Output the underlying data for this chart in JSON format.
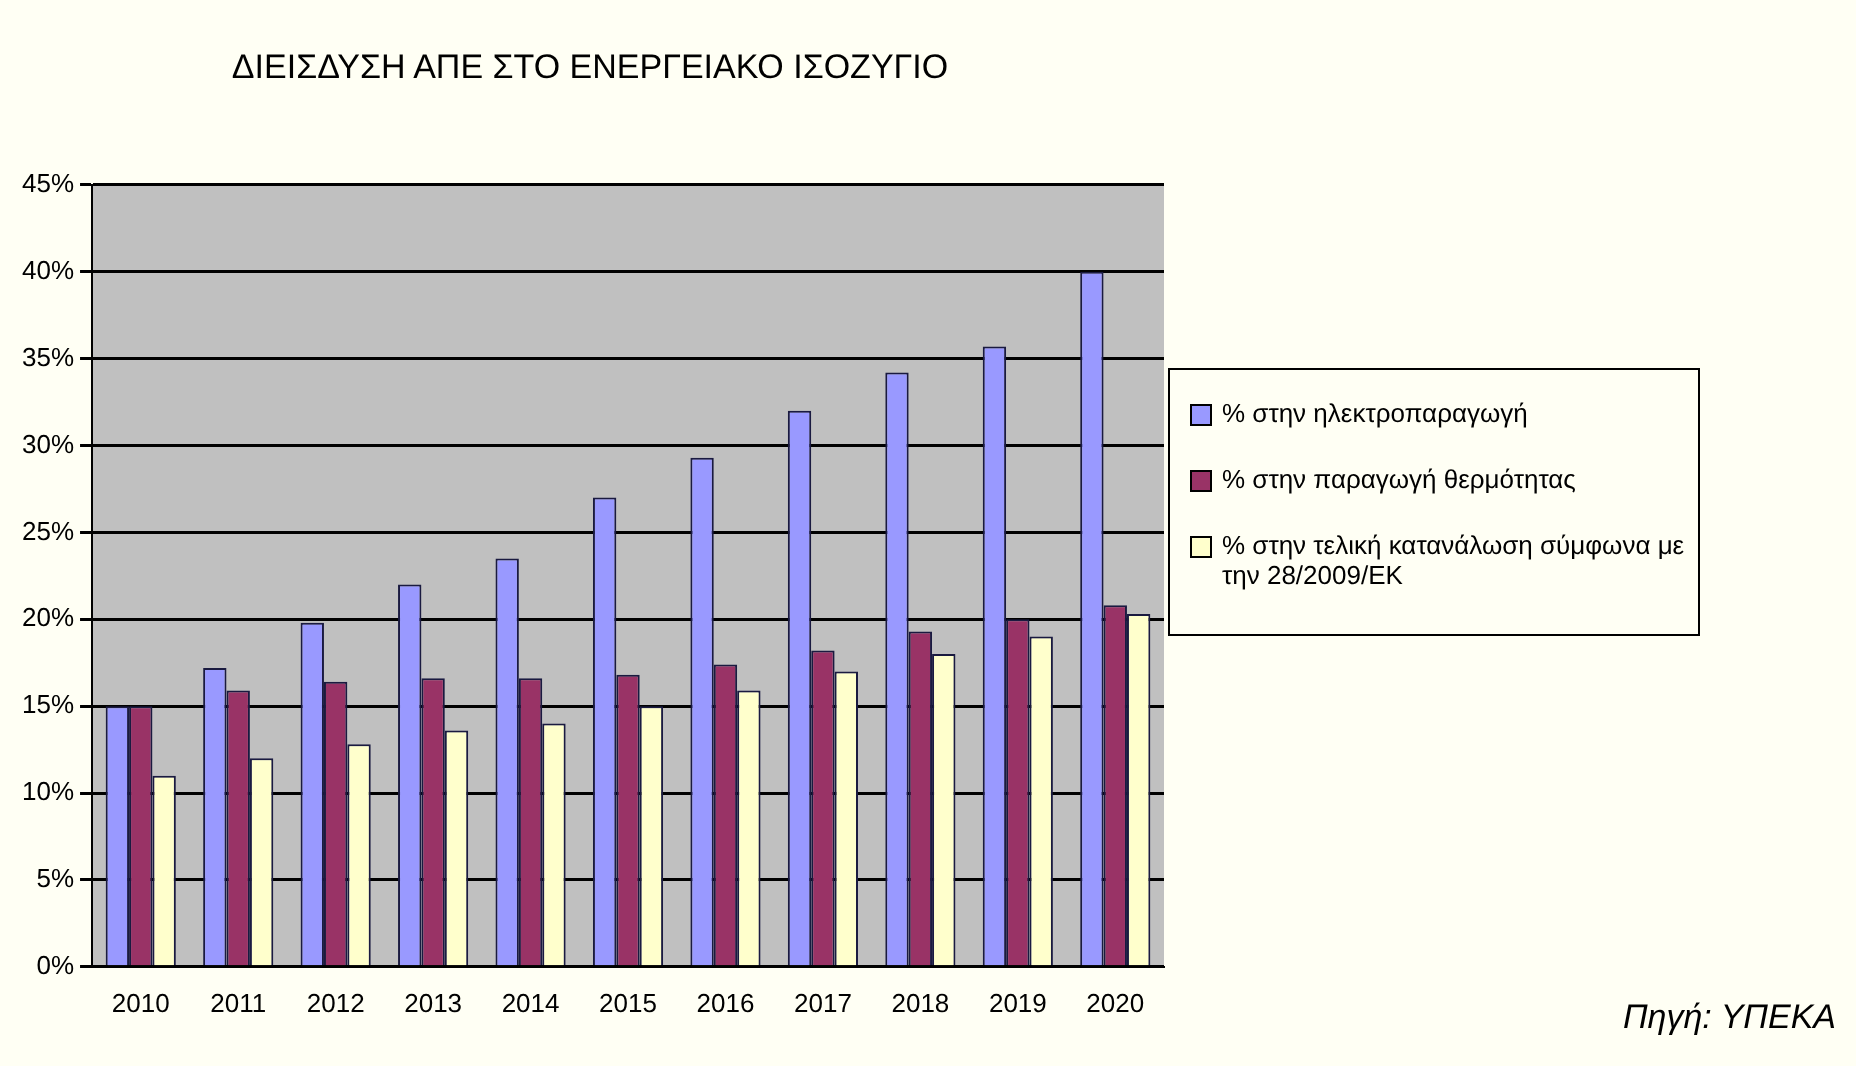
{
  "chart_data": {
    "type": "bar",
    "title": "ΔΙΕΙΣΔΥΣΗ ΑΠΕ ΣΤΟ ΕΝΕΡΓΕΙΑΚΟ ΙΣΟΖΥΓΙΟ",
    "categories": [
      "2010",
      "2011",
      "2012",
      "2013",
      "2014",
      "2015",
      "2016",
      "2017",
      "2018",
      "2019",
      "2020"
    ],
    "series": [
      {
        "name": "% στην ηλεκτροπαραγωγή",
        "color": "#9999ff",
        "values": [
          15,
          17.2,
          19.8,
          22,
          23.5,
          27,
          29.3,
          32,
          34.2,
          35.7,
          40
        ]
      },
      {
        "name": "% στην παραγωγή  θερμότητας",
        "color": "#993366",
        "values": [
          15,
          15.9,
          16.4,
          16.6,
          16.6,
          16.8,
          17.4,
          18.2,
          19.3,
          20,
          20.8
        ]
      },
      {
        "name": "% στην τελική κατανάλωση σύμφωνα με την 28/2009/ΕΚ",
        "color": "#ffffcc",
        "values": [
          11,
          12,
          12.8,
          13.6,
          14,
          15,
          15.9,
          17,
          18,
          19,
          20.3
        ]
      }
    ],
    "ylim": [
      0,
      45
    ],
    "yticks": [
      {
        "value": 0,
        "label": "0%"
      },
      {
        "value": 5,
        "label": "5%"
      },
      {
        "value": 10,
        "label": "10%"
      },
      {
        "value": 15,
        "label": "15%"
      },
      {
        "value": 20,
        "label": "20%"
      },
      {
        "value": 25,
        "label": "25%"
      },
      {
        "value": 30,
        "label": "30%"
      },
      {
        "value": 35,
        "label": "35%"
      },
      {
        "value": 40,
        "label": "40%"
      },
      {
        "value": 45,
        "label": "45%"
      }
    ],
    "grid": "y",
    "legend": "right",
    "annotations": [
      "Πηγή: ΥΠΕΚΑ"
    ]
  }
}
